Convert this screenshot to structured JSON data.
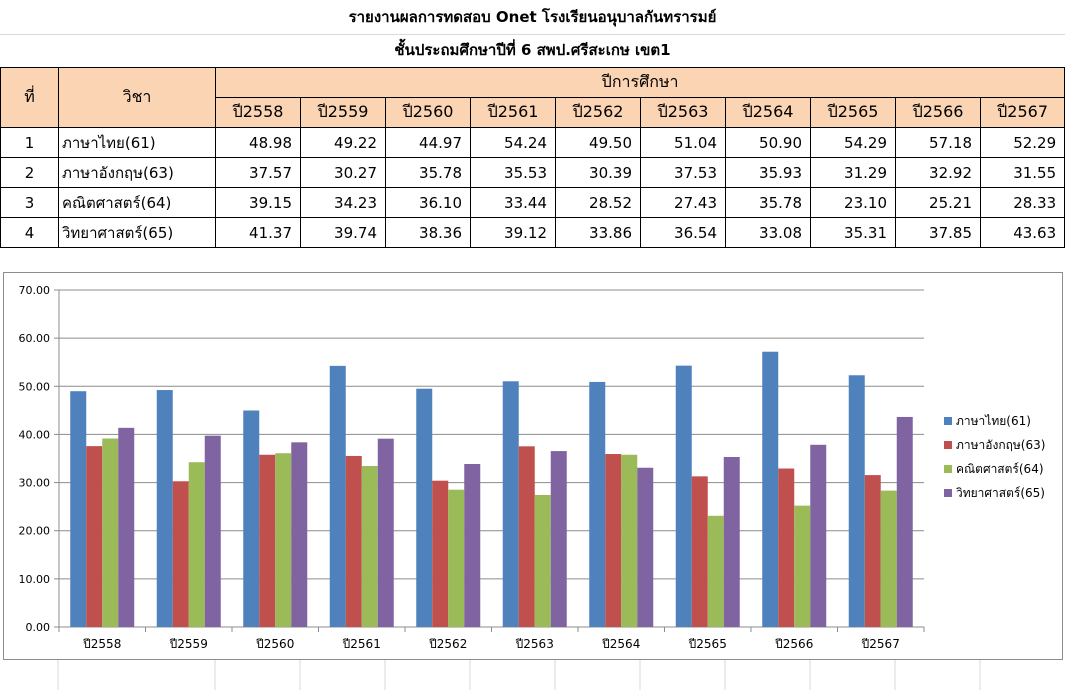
{
  "header": {
    "title": "รายงานผลการทดสอบ Onet  โรงเรียนอนุบาลกันทรารมย์",
    "subtitle": "ชั้นประถมศึกษาปีที่ 6  สพป.ศรีสะเกษ เขต1"
  },
  "table": {
    "col_index": "ที่",
    "col_subject": "วิชา",
    "col_group": "ปีการศึกษา",
    "years": [
      "ปี2558",
      "ปี2559",
      "ปี2560",
      "ปี2561",
      "ปี2562",
      "ปี2563",
      "ปี2564",
      "ปี2565",
      "ปี2566",
      "ปี2567"
    ],
    "rows": [
      {
        "index": "1",
        "subject": "ภาษาไทย(61)",
        "values": [
          "48.98",
          "49.22",
          "44.97",
          "54.24",
          "49.50",
          "51.04",
          "50.90",
          "54.29",
          "57.18",
          "52.29"
        ]
      },
      {
        "index": "2",
        "subject": "ภาษาอังกฤษ(63)",
        "values": [
          "37.57",
          "30.27",
          "35.78",
          "35.53",
          "30.39",
          "37.53",
          "35.93",
          "31.29",
          "32.92",
          "31.55"
        ]
      },
      {
        "index": "3",
        "subject": "คณิตศาสตร์(64)",
        "values": [
          "39.15",
          "34.23",
          "36.10",
          "33.44",
          "28.52",
          "27.43",
          "35.78",
          "23.10",
          "25.21",
          "28.33"
        ]
      },
      {
        "index": "4",
        "subject": "วิทยาศาสตร์(65)",
        "values": [
          "41.37",
          "39.74",
          "38.36",
          "39.12",
          "33.86",
          "36.54",
          "33.08",
          "35.31",
          "37.85",
          "43.63"
        ]
      }
    ]
  },
  "chart_data": {
    "type": "bar",
    "title": "",
    "xlabel": "",
    "ylabel": "",
    "ylim": [
      0,
      70
    ],
    "ytick_step": 10,
    "ytick_labels": [
      "0.00",
      "10.00",
      "20.00",
      "30.00",
      "40.00",
      "50.00",
      "60.00",
      "70.00"
    ],
    "grid": true,
    "legend_position": "right",
    "categories": [
      "ปี2558",
      "ปี2559",
      "ปี2560",
      "ปี2561",
      "ปี2562",
      "ปี2563",
      "ปี2564",
      "ปี2565",
      "ปี2566",
      "ปี2567"
    ],
    "series": [
      {
        "name": "ภาษาไทย(61)",
        "color": "#4f81bd",
        "values": [
          48.98,
          49.22,
          44.97,
          54.24,
          49.5,
          51.04,
          50.9,
          54.29,
          57.18,
          52.29
        ]
      },
      {
        "name": "ภาษาอังกฤษ(63)",
        "color": "#c0504d",
        "values": [
          37.57,
          30.27,
          35.78,
          35.53,
          30.39,
          37.53,
          35.93,
          31.29,
          32.92,
          31.55
        ]
      },
      {
        "name": "คณิตศาสตร์(64)",
        "color": "#9bbb59",
        "values": [
          39.15,
          34.23,
          36.1,
          33.44,
          28.52,
          27.43,
          35.78,
          23.1,
          25.21,
          28.33
        ]
      },
      {
        "name": "วิทยาศาสตร์(65)",
        "color": "#8064a2",
        "values": [
          41.37,
          39.74,
          38.36,
          39.12,
          33.86,
          36.54,
          33.08,
          35.31,
          37.85,
          43.63
        ]
      }
    ]
  }
}
